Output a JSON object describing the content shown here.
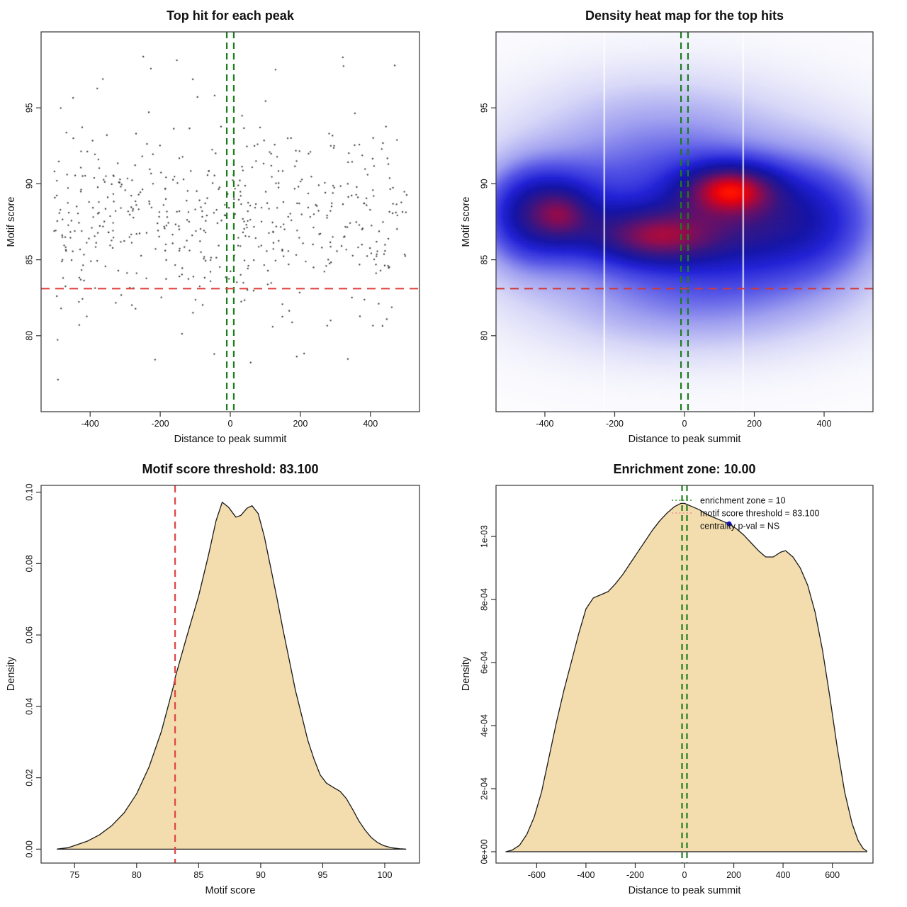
{
  "figure": {
    "background": "#ffffff"
  },
  "chart_data": [
    {
      "id": "top-hit-scatter",
      "type": "scatter",
      "title": "Top hit for each peak",
      "xlabel": "Distance to peak summit",
      "ylabel": "Motif score",
      "xlim": [
        -540,
        540
      ],
      "ylim": [
        75,
        100
      ],
      "xticks": [
        -400,
        -200,
        0,
        200,
        400
      ],
      "xtick_labels": [
        "-400",
        "-200",
        "0",
        "200",
        "400"
      ],
      "yticks": [
        80,
        85,
        90,
        95
      ],
      "ytick_labels": [
        "80",
        "85",
        "90",
        "95"
      ],
      "point_color": "#2b2b2b",
      "point_radius": 1.15,
      "points_spec": {
        "seed": 13,
        "n": 560,
        "x_range": [
          -505,
          505
        ],
        "y_mean": 87.8,
        "y_sd": 3.1,
        "y_min": 76.6,
        "y_max": 99.2,
        "uniform_fraction": 0.1,
        "y_uniform_range": [
          77.0,
          98.5
        ]
      },
      "threshold_line": {
        "y": 83.1,
        "color": "#e04545",
        "dash": "12,8"
      },
      "enrichment_lines": {
        "x": [
          -10,
          10
        ],
        "color": "#1d7d1d",
        "dash": "9,6"
      }
    },
    {
      "id": "density-heatmap",
      "type": "heatmap",
      "title": "Density heat map for the top hits",
      "xlabel": "Distance to peak summit",
      "ylabel": "Motif score",
      "xlim": [
        -540,
        540
      ],
      "ylim": [
        75,
        100
      ],
      "xticks": [
        -400,
        -200,
        0,
        200,
        400
      ],
      "xtick_labels": [
        "-400",
        "-200",
        "0",
        "200",
        "400"
      ],
      "yticks": [
        80,
        85,
        90,
        95
      ],
      "ytick_labels": [
        "80",
        "85",
        "90",
        "95"
      ],
      "colormap": [
        [
          0,
          "#ffffff"
        ],
        [
          0.06,
          "#f2f2fc"
        ],
        [
          0.15,
          "#d8d8f8"
        ],
        [
          0.28,
          "#9f9ff0"
        ],
        [
          0.4,
          "#5555e6"
        ],
        [
          0.52,
          "#2222d6"
        ],
        [
          0.62,
          "#1515a8"
        ],
        [
          0.72,
          "#321687"
        ],
        [
          0.82,
          "#6e1064"
        ],
        [
          0.9,
          "#b00838"
        ],
        [
          0.96,
          "#e8020e"
        ],
        [
          1,
          "#ff1400"
        ]
      ],
      "density_blobs": [
        [
          -20,
          87.8,
          300,
          3.6,
          0.55
        ],
        [
          -90,
          86.5,
          130,
          1.3,
          0.75
        ],
        [
          130,
          89.7,
          95,
          1.15,
          0.85
        ],
        [
          -400,
          88.2,
          115,
          2.1,
          0.65
        ],
        [
          -350,
          88.0,
          55,
          1.1,
          0.3
        ],
        [
          240,
          87.3,
          170,
          2.6,
          0.5
        ],
        [
          -80,
          94.0,
          260,
          2.7,
          0.2
        ],
        [
          40,
          81.8,
          300,
          2.3,
          0.26
        ],
        [
          0,
          88.0,
          460,
          6.0,
          0.22
        ],
        [
          430,
          87.8,
          120,
          3.2,
          0.3
        ],
        [
          -470,
          87.5,
          90,
          2.6,
          0.28
        ]
      ],
      "white_gap_lines": [
        -230,
        168
      ],
      "threshold_line": {
        "y": 83.1,
        "color": "#d03a3a",
        "dash": "12,8"
      },
      "enrichment_lines": {
        "x": [
          -10,
          10
        ],
        "color": "#1d7d1d",
        "dash": "9,6"
      }
    },
    {
      "id": "motif-score-density",
      "type": "area",
      "title": "Motif score threshold: 83.100",
      "xlabel": "Motif score",
      "ylabel": "Density",
      "xlim": [
        72.3,
        102.8
      ],
      "ylim": [
        -0.0039,
        0.1019
      ],
      "xticks": [
        75,
        80,
        85,
        90,
        95,
        100
      ],
      "xtick_labels": [
        "75",
        "80",
        "85",
        "90",
        "95",
        "100"
      ],
      "yticks": [
        0,
        0.02,
        0.04,
        0.06,
        0.08,
        0.1
      ],
      "ytick_labels": [
        "0.00",
        "0.02",
        "0.04",
        "0.06",
        "0.08",
        "0.10"
      ],
      "fill": "#f3ddae",
      "stroke": "#1a1a1a",
      "threshold_line": {
        "x": 83.1,
        "color": "#e04545",
        "dash": "10,7"
      },
      "curve": [
        [
          73.6,
          5e-05
        ],
        [
          74.5,
          0.0004
        ],
        [
          75,
          0.001
        ],
        [
          76,
          0.0022
        ],
        [
          77,
          0.004
        ],
        [
          78,
          0.0066
        ],
        [
          79,
          0.0102
        ],
        [
          80,
          0.0155
        ],
        [
          81,
          0.023
        ],
        [
          82,
          0.033
        ],
        [
          83,
          0.046
        ],
        [
          83.1,
          0.048
        ],
        [
          84,
          0.059
        ],
        [
          85,
          0.071
        ],
        [
          85.8,
          0.0825
        ],
        [
          86.4,
          0.092
        ],
        [
          86.9,
          0.0972
        ],
        [
          87.4,
          0.0958
        ],
        [
          88.0,
          0.093
        ],
        [
          88.4,
          0.0935
        ],
        [
          88.9,
          0.0955
        ],
        [
          89.3,
          0.0962
        ],
        [
          89.8,
          0.094
        ],
        [
          90.3,
          0.0875
        ],
        [
          90.8,
          0.079
        ],
        [
          91.3,
          0.0705
        ],
        [
          91.8,
          0.0615
        ],
        [
          92.3,
          0.053
        ],
        [
          92.8,
          0.0445
        ],
        [
          93.3,
          0.0375
        ],
        [
          93.8,
          0.0305
        ],
        [
          94.3,
          0.0252
        ],
        [
          94.8,
          0.0208
        ],
        [
          95.3,
          0.0185
        ],
        [
          95.9,
          0.0172
        ],
        [
          96.4,
          0.0162
        ],
        [
          96.9,
          0.0142
        ],
        [
          97.4,
          0.0112
        ],
        [
          97.9,
          0.008
        ],
        [
          98.4,
          0.0054
        ],
        [
          98.9,
          0.0033
        ],
        [
          99.4,
          0.0019
        ],
        [
          99.9,
          0.001
        ],
        [
          100.5,
          0.0004
        ],
        [
          101.2,
          0.0001
        ],
        [
          101.7,
          2e-05
        ]
      ]
    },
    {
      "id": "distance-density",
      "type": "area",
      "title": "Enrichment zone: 10.00",
      "xlabel": "Distance to peak summit",
      "ylabel": "Density",
      "xlim": [
        -765,
        765
      ],
      "ylim": [
        -3.6e-05,
        0.001162
      ],
      "xticks": [
        -600,
        -400,
        -200,
        0,
        200,
        400,
        600
      ],
      "xtick_labels": [
        "-600",
        "-400",
        "-200",
        "0",
        "200",
        "400",
        "600"
      ],
      "yticks": [
        0,
        0.0002,
        0.0004,
        0.0006,
        0.0008,
        0.001
      ],
      "ytick_labels": [
        "0e+00",
        "2e-04",
        "4e-04",
        "6e-04",
        "8e-04",
        "1e-03"
      ],
      "fill": "#f3ddae",
      "stroke": "#1a1a1a",
      "enrichment_lines": {
        "x": [
          -10,
          10
        ],
        "color": "#1d7d1d",
        "dash": "8,6"
      },
      "marker": {
        "x": 181,
        "y": 0.00104,
        "color": "#1414e6",
        "radius": 3.5
      },
      "legend": {
        "items": [
          {
            "label": "enrichment zone = 10",
            "sample": "dotted",
            "color": "#2e8b2e"
          },
          {
            "label": "motif score threshold = 83.100",
            "sample": "dotted",
            "color": "#f0908f"
          },
          {
            "label": "centrality p-val = NS",
            "sample": "none",
            "color": ""
          }
        ]
      },
      "curve": [
        [
          -725,
          0
        ],
        [
          -700,
          5e-06
        ],
        [
          -670,
          2e-05
        ],
        [
          -640,
          5.5e-05
        ],
        [
          -610,
          0.00011
        ],
        [
          -580,
          0.00019
        ],
        [
          -550,
          0.0003
        ],
        [
          -520,
          0.00041
        ],
        [
          -490,
          0.00051
        ],
        [
          -460,
          0.0006
        ],
        [
          -430,
          0.00069
        ],
        [
          -400,
          0.00077
        ],
        [
          -370,
          0.000805
        ],
        [
          -340,
          0.000815
        ],
        [
          -310,
          0.000825
        ],
        [
          -280,
          0.00085
        ],
        [
          -250,
          0.00088
        ],
        [
          -220,
          0.000915
        ],
        [
          -190,
          0.00095
        ],
        [
          -160,
          0.000985
        ],
        [
          -130,
          0.00102
        ],
        [
          -100,
          0.00105
        ],
        [
          -70,
          0.001075
        ],
        [
          -40,
          0.001095
        ],
        [
          -15,
          0.001105
        ],
        [
          0,
          0.001105
        ],
        [
          30,
          0.001095
        ],
        [
          60,
          0.001085
        ],
        [
          90,
          0.00107
        ],
        [
          120,
          0.00106
        ],
        [
          150,
          0.00105
        ],
        [
          181,
          0.00104
        ],
        [
          210,
          0.001025
        ],
        [
          240,
          0.001005
        ],
        [
          270,
          0.00098
        ],
        [
          300,
          0.000955
        ],
        [
          330,
          0.000935
        ],
        [
          360,
          0.000935
        ],
        [
          390,
          0.00095
        ],
        [
          410,
          0.000955
        ],
        [
          440,
          0.000935
        ],
        [
          470,
          0.0009
        ],
        [
          500,
          0.000845
        ],
        [
          530,
          0.00076
        ],
        [
          560,
          0.00064
        ],
        [
          590,
          0.00049
        ],
        [
          620,
          0.00033
        ],
        [
          650,
          0.00019
        ],
        [
          680,
          9e-05
        ],
        [
          705,
          3.5e-05
        ],
        [
          725,
          1e-05
        ],
        [
          740,
          2e-06
        ]
      ]
    }
  ]
}
